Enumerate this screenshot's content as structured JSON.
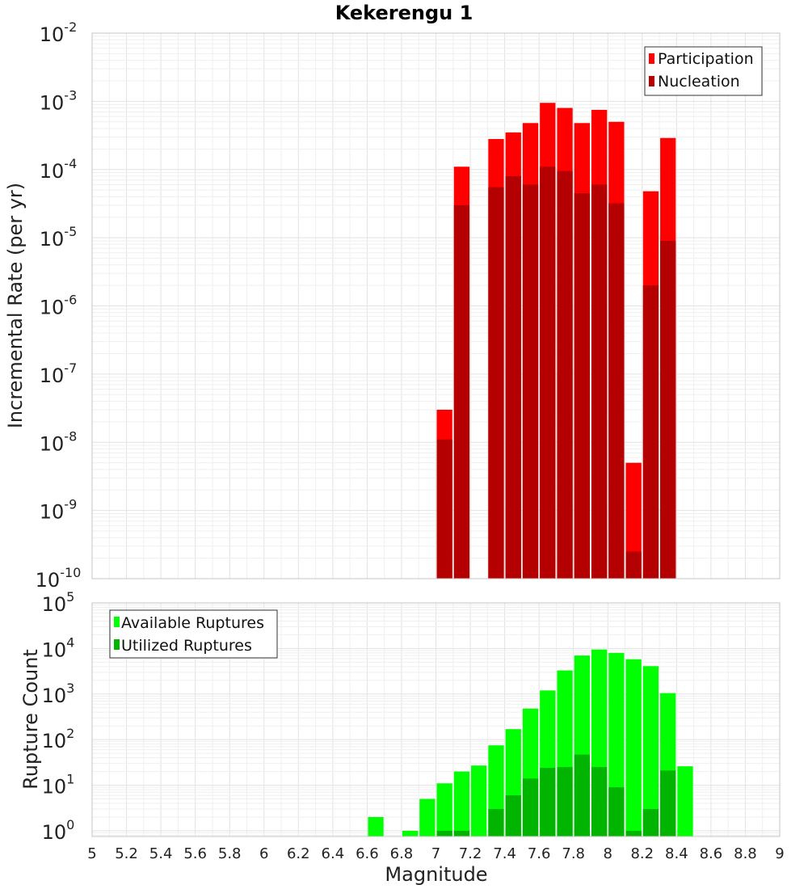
{
  "chart_data": [
    {
      "type": "bar",
      "title": "Kekerengu 1",
      "ylabel": "Incremental Rate (per yr)",
      "xlabel": "",
      "y_scale": "log",
      "ylim": [
        1e-10,
        0.01
      ],
      "xlim": [
        5,
        9
      ],
      "bin_width": 0.1,
      "legend_position": "top-right",
      "series": [
        {
          "name": "Participation",
          "color": "#ff0000",
          "x": [
            7.05,
            7.15,
            7.35,
            7.45,
            7.55,
            7.65,
            7.75,
            7.85,
            7.95,
            8.05,
            8.15,
            8.25,
            8.35
          ],
          "values": [
            3e-08,
            0.00011,
            0.00028,
            0.00035,
            0.00048,
            0.00095,
            0.0008,
            0.00048,
            0.00075,
            0.0005,
            5e-09,
            4.8e-05,
            0.00029
          ]
        },
        {
          "name": "Nucleation",
          "color": "#b40000",
          "x": [
            7.05,
            7.15,
            7.35,
            7.45,
            7.55,
            7.65,
            7.75,
            7.85,
            7.95,
            8.05,
            8.15,
            8.25,
            8.35
          ],
          "values": [
            1.1e-08,
            3e-05,
            5.5e-05,
            8e-05,
            6e-05,
            0.00011,
            9.5e-05,
            4.5e-05,
            6e-05,
            3.2e-05,
            2.5e-10,
            2e-06,
            9e-06
          ]
        }
      ],
      "y_ticks": [
        {
          "base": "10",
          "exp": "-10"
        },
        {
          "base": "10",
          "exp": "-9"
        },
        {
          "base": "10",
          "exp": "-8"
        },
        {
          "base": "10",
          "exp": "-7"
        },
        {
          "base": "10",
          "exp": "-6"
        },
        {
          "base": "10",
          "exp": "-5"
        },
        {
          "base": "10",
          "exp": "-4"
        },
        {
          "base": "10",
          "exp": "-3"
        },
        {
          "base": "10",
          "exp": "-2"
        }
      ]
    },
    {
      "type": "bar",
      "title": "",
      "ylabel": "Rupture Count",
      "xlabel": "Magnitude",
      "y_scale": "log",
      "ylim": [
        0.75,
        100000.0
      ],
      "xlim": [
        5,
        9
      ],
      "bin_width": 0.1,
      "legend_position": "top-left",
      "series": [
        {
          "name": "Available Ruptures",
          "color": "#00ff00",
          "x": [
            6.65,
            6.85,
            6.95,
            7.05,
            7.15,
            7.25,
            7.35,
            7.45,
            7.55,
            7.65,
            7.75,
            7.85,
            7.95,
            8.05,
            8.15,
            8.25,
            8.35,
            8.45
          ],
          "values": [
            2,
            1,
            5,
            11,
            20,
            27,
            75,
            170,
            480,
            1200,
            3300,
            7000,
            9500,
            8000,
            5800,
            4100,
            1050,
            26
          ]
        },
        {
          "name": "Utilized Ruptures",
          "color": "#00b400",
          "x": [
            7.05,
            7.15,
            7.35,
            7.45,
            7.55,
            7.65,
            7.75,
            7.85,
            7.95,
            8.05,
            8.15,
            8.25,
            8.35
          ],
          "values": [
            1,
            1,
            3,
            6,
            14,
            24,
            25,
            47,
            25,
            9,
            1,
            3,
            21
          ]
        }
      ],
      "x_ticks": [
        "5",
        "5.2",
        "5.4",
        "5.6",
        "5.8",
        "6",
        "6.2",
        "6.4",
        "6.6",
        "6.8",
        "7",
        "7.2",
        "7.4",
        "7.6",
        "7.8",
        "8",
        "8.2",
        "8.4",
        "8.6",
        "8.8",
        "9"
      ],
      "y_ticks": [
        {
          "base": "10",
          "exp": "0"
        },
        {
          "base": "10",
          "exp": "1"
        },
        {
          "base": "10",
          "exp": "2"
        },
        {
          "base": "10",
          "exp": "3"
        },
        {
          "base": "10",
          "exp": "4"
        },
        {
          "base": "10",
          "exp": "5"
        }
      ]
    }
  ]
}
